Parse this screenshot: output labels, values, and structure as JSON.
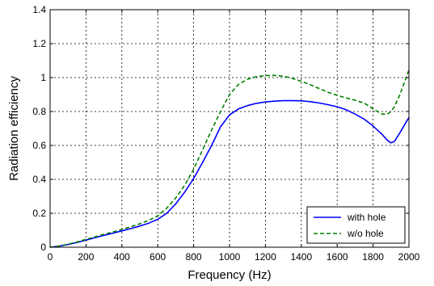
{
  "chart_data": {
    "type": "line",
    "xlabel": "Frequency (Hz)",
    "ylabel": "Radiation efficiency",
    "xlim": [
      0,
      2000
    ],
    "ylim": [
      0,
      1.4
    ],
    "xticks": [
      "0",
      "200",
      "400",
      "600",
      "800",
      "1000",
      "1200",
      "1400",
      "1600",
      "1800",
      "2000"
    ],
    "yticks": [
      "0",
      "0.2",
      "0.4",
      "0.6",
      "0.8",
      "1",
      "1.2",
      "1.4"
    ],
    "grid": true,
    "legend_position": "bottom-right",
    "series": [
      {
        "name": "with hole",
        "color": "#0000ff",
        "style": "solid",
        "x": [
          0,
          50,
          100,
          150,
          200,
          250,
          300,
          350,
          400,
          450,
          500,
          550,
          600,
          650,
          700,
          750,
          800,
          850,
          900,
          950,
          1000,
          1050,
          1100,
          1150,
          1200,
          1250,
          1300,
          1350,
          1400,
          1450,
          1500,
          1550,
          1600,
          1650,
          1700,
          1750,
          1800,
          1850,
          1880,
          1900,
          1920,
          1950,
          2000
        ],
        "y": [
          0.0,
          0.006,
          0.016,
          0.028,
          0.042,
          0.056,
          0.07,
          0.083,
          0.096,
          0.11,
          0.125,
          0.142,
          0.165,
          0.2,
          0.255,
          0.325,
          0.405,
          0.5,
          0.6,
          0.71,
          0.78,
          0.815,
          0.835,
          0.848,
          0.856,
          0.861,
          0.864,
          0.864,
          0.863,
          0.858,
          0.85,
          0.84,
          0.828,
          0.81,
          0.785,
          0.755,
          0.715,
          0.665,
          0.63,
          0.615,
          0.625,
          0.675,
          0.765
        ]
      },
      {
        "name": "w/o hole",
        "color": "#008000",
        "style": "dashed",
        "x": [
          0,
          50,
          100,
          150,
          200,
          250,
          300,
          350,
          400,
          450,
          500,
          550,
          600,
          650,
          700,
          750,
          800,
          850,
          900,
          950,
          1000,
          1050,
          1100,
          1150,
          1200,
          1250,
          1300,
          1350,
          1400,
          1450,
          1500,
          1550,
          1600,
          1650,
          1700,
          1750,
          1800,
          1850,
          1880,
          1900,
          1920,
          1950,
          2000
        ],
        "y": [
          0.0,
          0.007,
          0.018,
          0.031,
          0.046,
          0.061,
          0.076,
          0.09,
          0.105,
          0.121,
          0.138,
          0.158,
          0.185,
          0.23,
          0.29,
          0.365,
          0.46,
          0.575,
          0.69,
          0.8,
          0.9,
          0.96,
          0.99,
          1.005,
          1.012,
          1.013,
          1.008,
          0.995,
          0.978,
          0.958,
          0.935,
          0.913,
          0.895,
          0.88,
          0.866,
          0.85,
          0.815,
          0.785,
          0.785,
          0.8,
          0.83,
          0.9,
          1.045
        ]
      }
    ]
  }
}
